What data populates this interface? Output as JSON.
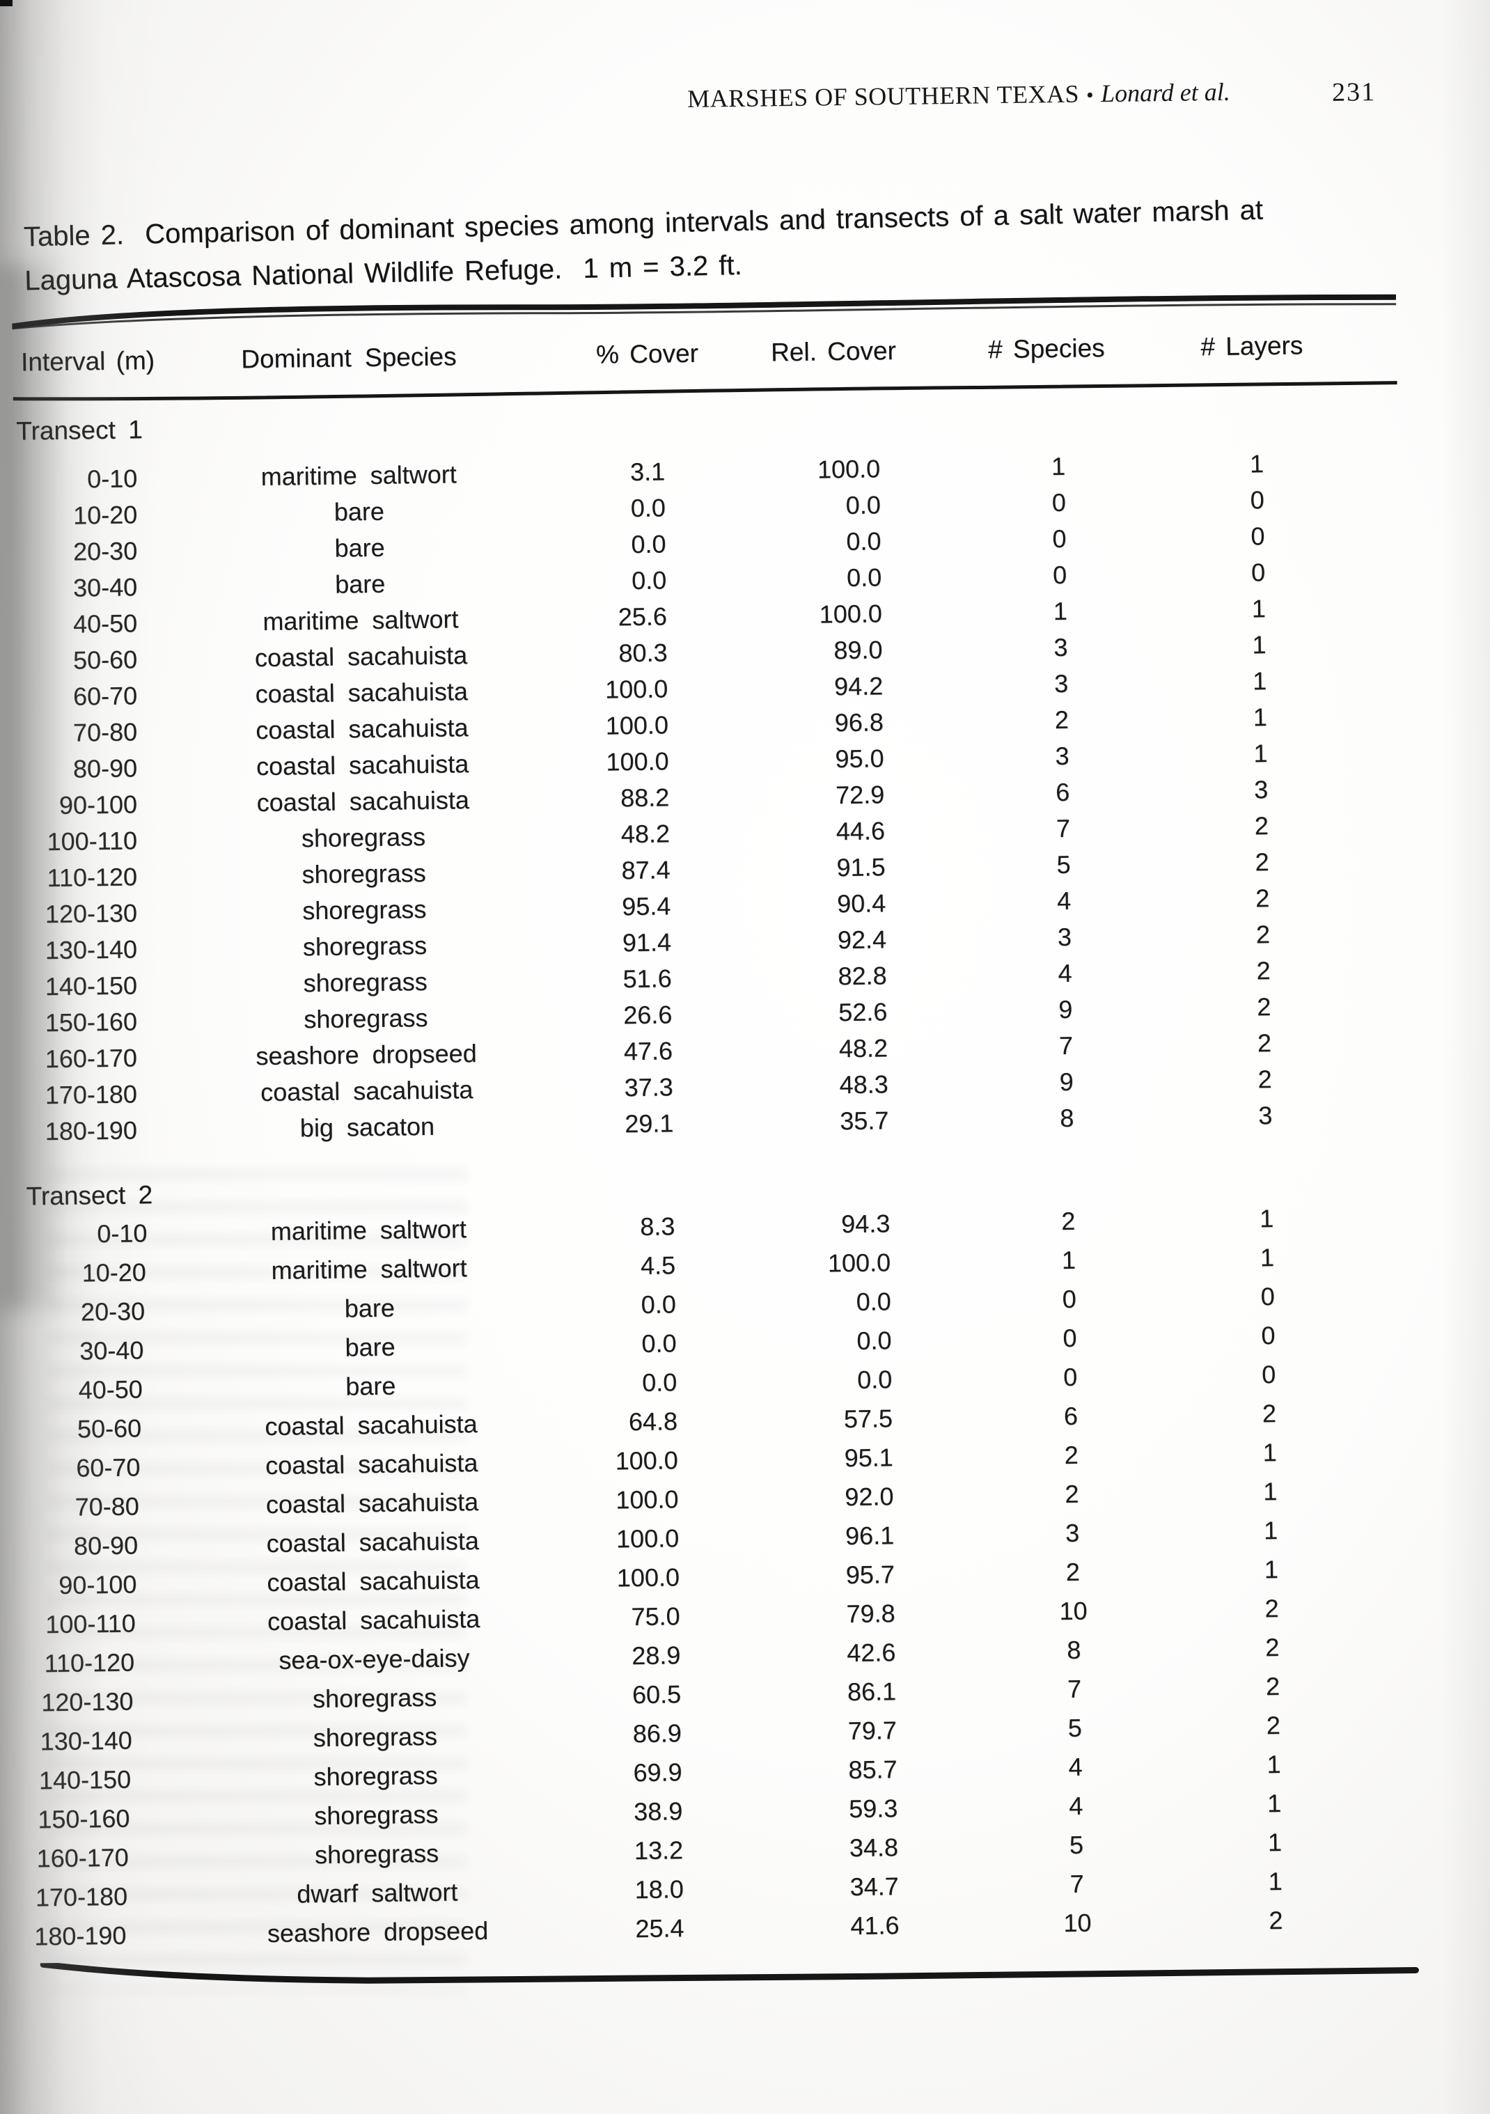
{
  "running_header": {
    "title": "MARSHES OF SOUTHERN TEXAS",
    "bullet": "•",
    "authors": "Lonard et al.",
    "page_number": "231"
  },
  "caption": {
    "line1": "Table 2.  Comparison of dominant species among intervals and transects of a salt water marsh at",
    "line2": "Laguna Atascosa National Wildlife Refuge.  1 m = 3.2 ft."
  },
  "table": {
    "columns": [
      "Interval (m)",
      "Dominant Species",
      "% Cover",
      "Rel. Cover",
      "# Species",
      "# Layers"
    ],
    "transects": [
      {
        "label": "Transect 1",
        "rows": [
          {
            "interval": "0-10",
            "species": "maritime saltwort",
            "pct_cover": "3.1",
            "rel_cover": "100.0",
            "n_species": "1",
            "n_layers": "1"
          },
          {
            "interval": "10-20",
            "species": "bare",
            "pct_cover": "0.0",
            "rel_cover": "0.0",
            "n_species": "0",
            "n_layers": "0"
          },
          {
            "interval": "20-30",
            "species": "bare",
            "pct_cover": "0.0",
            "rel_cover": "0.0",
            "n_species": "0",
            "n_layers": "0"
          },
          {
            "interval": "30-40",
            "species": "bare",
            "pct_cover": "0.0",
            "rel_cover": "0.0",
            "n_species": "0",
            "n_layers": "0"
          },
          {
            "interval": "40-50",
            "species": "maritime saltwort",
            "pct_cover": "25.6",
            "rel_cover": "100.0",
            "n_species": "1",
            "n_layers": "1"
          },
          {
            "interval": "50-60",
            "species": "coastal sacahuista",
            "pct_cover": "80.3",
            "rel_cover": "89.0",
            "n_species": "3",
            "n_layers": "1"
          },
          {
            "interval": "60-70",
            "species": "coastal sacahuista",
            "pct_cover": "100.0",
            "rel_cover": "94.2",
            "n_species": "3",
            "n_layers": "1"
          },
          {
            "interval": "70-80",
            "species": "coastal sacahuista",
            "pct_cover": "100.0",
            "rel_cover": "96.8",
            "n_species": "2",
            "n_layers": "1"
          },
          {
            "interval": "80-90",
            "species": "coastal sacahuista",
            "pct_cover": "100.0",
            "rel_cover": "95.0",
            "n_species": "3",
            "n_layers": "1"
          },
          {
            "interval": "90-100",
            "species": "coastal sacahuista",
            "pct_cover": "88.2",
            "rel_cover": "72.9",
            "n_species": "6",
            "n_layers": "3"
          },
          {
            "interval": "100-110",
            "species": "shoregrass",
            "pct_cover": "48.2",
            "rel_cover": "44.6",
            "n_species": "7",
            "n_layers": "2"
          },
          {
            "interval": "110-120",
            "species": "shoregrass",
            "pct_cover": "87.4",
            "rel_cover": "91.5",
            "n_species": "5",
            "n_layers": "2"
          },
          {
            "interval": "120-130",
            "species": "shoregrass",
            "pct_cover": "95.4",
            "rel_cover": "90.4",
            "n_species": "4",
            "n_layers": "2"
          },
          {
            "interval": "130-140",
            "species": "shoregrass",
            "pct_cover": "91.4",
            "rel_cover": "92.4",
            "n_species": "3",
            "n_layers": "2"
          },
          {
            "interval": "140-150",
            "species": "shoregrass",
            "pct_cover": "51.6",
            "rel_cover": "82.8",
            "n_species": "4",
            "n_layers": "2"
          },
          {
            "interval": "150-160",
            "species": "shoregrass",
            "pct_cover": "26.6",
            "rel_cover": "52.6",
            "n_species": "9",
            "n_layers": "2"
          },
          {
            "interval": "160-170",
            "species": "seashore dropseed",
            "pct_cover": "47.6",
            "rel_cover": "48.2",
            "n_species": "7",
            "n_layers": "2"
          },
          {
            "interval": "170-180",
            "species": "coastal sacahuista",
            "pct_cover": "37.3",
            "rel_cover": "48.3",
            "n_species": "9",
            "n_layers": "2"
          },
          {
            "interval": "180-190",
            "species": "big sacaton",
            "pct_cover": "29.1",
            "rel_cover": "35.7",
            "n_species": "8",
            "n_layers": "3"
          }
        ]
      },
      {
        "label": "Transect 2",
        "rows": [
          {
            "interval": "0-10",
            "species": "maritime saltwort",
            "pct_cover": "8.3",
            "rel_cover": "94.3",
            "n_species": "2",
            "n_layers": "1"
          },
          {
            "interval": "10-20",
            "species": "maritime saltwort",
            "pct_cover": "4.5",
            "rel_cover": "100.0",
            "n_species": "1",
            "n_layers": "1"
          },
          {
            "interval": "20-30",
            "species": "bare",
            "pct_cover": "0.0",
            "rel_cover": "0.0",
            "n_species": "0",
            "n_layers": "0"
          },
          {
            "interval": "30-40",
            "species": "bare",
            "pct_cover": "0.0",
            "rel_cover": "0.0",
            "n_species": "0",
            "n_layers": "0"
          },
          {
            "interval": "40-50",
            "species": "bare",
            "pct_cover": "0.0",
            "rel_cover": "0.0",
            "n_species": "0",
            "n_layers": "0"
          },
          {
            "interval": "50-60",
            "species": "coastal sacahuista",
            "pct_cover": "64.8",
            "rel_cover": "57.5",
            "n_species": "6",
            "n_layers": "2"
          },
          {
            "interval": "60-70",
            "species": "coastal sacahuista",
            "pct_cover": "100.0",
            "rel_cover": "95.1",
            "n_species": "2",
            "n_layers": "1"
          },
          {
            "interval": "70-80",
            "species": "coastal sacahuista",
            "pct_cover": "100.0",
            "rel_cover": "92.0",
            "n_species": "2",
            "n_layers": "1"
          },
          {
            "interval": "80-90",
            "species": "coastal sacahuista",
            "pct_cover": "100.0",
            "rel_cover": "96.1",
            "n_species": "3",
            "n_layers": "1"
          },
          {
            "interval": "90-100",
            "species": "coastal sacahuista",
            "pct_cover": "100.0",
            "rel_cover": "95.7",
            "n_species": "2",
            "n_layers": "1"
          },
          {
            "interval": "100-110",
            "species": "coastal sacahuista",
            "pct_cover": "75.0",
            "rel_cover": "79.8",
            "n_species": "10",
            "n_layers": "2"
          },
          {
            "interval": "110-120",
            "species": "sea-ox-eye-daisy",
            "pct_cover": "28.9",
            "rel_cover": "42.6",
            "n_species": "8",
            "n_layers": "2"
          },
          {
            "interval": "120-130",
            "species": "shoregrass",
            "pct_cover": "60.5",
            "rel_cover": "86.1",
            "n_species": "7",
            "n_layers": "2"
          },
          {
            "interval": "130-140",
            "species": "shoregrass",
            "pct_cover": "86.9",
            "rel_cover": "79.7",
            "n_species": "5",
            "n_layers": "2"
          },
          {
            "interval": "140-150",
            "species": "shoregrass",
            "pct_cover": "69.9",
            "rel_cover": "85.7",
            "n_species": "4",
            "n_layers": "1"
          },
          {
            "interval": "150-160",
            "species": "shoregrass",
            "pct_cover": "38.9",
            "rel_cover": "59.3",
            "n_species": "4",
            "n_layers": "1"
          },
          {
            "interval": "160-170",
            "species": "shoregrass",
            "pct_cover": "13.2",
            "rel_cover": "34.8",
            "n_species": "5",
            "n_layers": "1"
          },
          {
            "interval": "170-180",
            "species": "dwarf saltwort",
            "pct_cover": "18.0",
            "rel_cover": "34.7",
            "n_species": "7",
            "n_layers": "1"
          },
          {
            "interval": "180-190",
            "species": "seashore dropseed",
            "pct_cover": "25.4",
            "rel_cover": "41.6",
            "n_species": "10",
            "n_layers": "2"
          }
        ]
      }
    ]
  }
}
